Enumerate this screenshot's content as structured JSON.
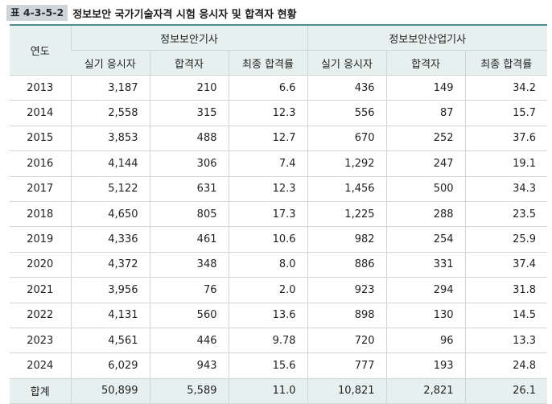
{
  "caption": {
    "label": "표 4-3-5-2",
    "title": "정보보안 국가기술자격 시험 응시자 및 합격자 현황"
  },
  "headers": {
    "year": "연도",
    "group1": "정보보안기사",
    "group2": "정보보안산업기사",
    "sub": [
      "실기 응시자",
      "합격자",
      "최종 합격률",
      "실기 응시자",
      "합격자",
      "최종 합격률"
    ]
  },
  "rows": [
    {
      "year": "2013",
      "cells": [
        "3,187",
        "210",
        "6.6",
        "436",
        "149",
        "34.2"
      ]
    },
    {
      "year": "2014",
      "cells": [
        "2,558",
        "315",
        "12.3",
        "556",
        "87",
        "15.7"
      ]
    },
    {
      "year": "2015",
      "cells": [
        "3,853",
        "488",
        "12.7",
        "670",
        "252",
        "37.6"
      ]
    },
    {
      "year": "2016",
      "cells": [
        "4,144",
        "306",
        "7.4",
        "1,292",
        "247",
        "19.1"
      ]
    },
    {
      "year": "2017",
      "cells": [
        "5,122",
        "631",
        "12.3",
        "1,456",
        "500",
        "34.3"
      ]
    },
    {
      "year": "2018",
      "cells": [
        "4,650",
        "805",
        "17.3",
        "1,225",
        "288",
        "23.5"
      ]
    },
    {
      "year": "2019",
      "cells": [
        "4,336",
        "461",
        "10.6",
        "982",
        "254",
        "25.9"
      ]
    },
    {
      "year": "2020",
      "cells": [
        "4,372",
        "348",
        "8.0",
        "886",
        "331",
        "37.4"
      ]
    },
    {
      "year": "2021",
      "cells": [
        "3,956",
        "76",
        "2.0",
        "923",
        "294",
        "31.8"
      ]
    },
    {
      "year": "2022",
      "cells": [
        "4,131",
        "560",
        "13.6",
        "898",
        "130",
        "14.5"
      ]
    },
    {
      "year": "2023",
      "cells": [
        "4,561",
        "446",
        "9.78",
        "720",
        "96",
        "13.3"
      ]
    },
    {
      "year": "2024",
      "cells": [
        "6,029",
        "943",
        "15.6",
        "777",
        "193",
        "24.8"
      ]
    }
  ],
  "total": {
    "year": "합계",
    "cells": [
      "50,899",
      "5,589",
      "11.0",
      "10,821",
      "2,821",
      "26.1"
    ]
  },
  "colors": {
    "caption_bg": "#cfd4d9",
    "header_bg": "#e6f0ef",
    "top_rule": "#4c8e8e"
  }
}
